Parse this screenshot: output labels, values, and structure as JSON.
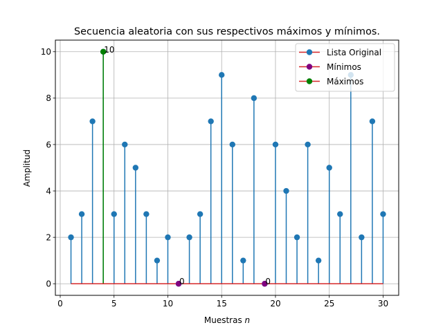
{
  "chart_data": {
    "type": "stem",
    "title": "Secuencia aleatoria con sus respectivos máximos y mínimos.",
    "xlabel": "Muestras",
    "xlabel_var": "n",
    "ylabel": "Amplitud",
    "xlim": [
      -0.45,
      31.45
    ],
    "ylim": [
      -0.5,
      10.5
    ],
    "xticks": [
      0,
      5,
      10,
      15,
      20,
      25,
      30
    ],
    "yticks": [
      0,
      2,
      4,
      6,
      8,
      10
    ],
    "grid": true,
    "legend_position": "top-right",
    "series": [
      {
        "name": "Lista Original",
        "color": "#1f77b4",
        "x": [
          1,
          2,
          3,
          4,
          5,
          6,
          7,
          8,
          9,
          10,
          11,
          12,
          13,
          14,
          15,
          16,
          17,
          18,
          19,
          20,
          21,
          22,
          23,
          24,
          25,
          26,
          27,
          28,
          29,
          30
        ],
        "values": [
          2,
          3,
          7,
          10,
          3,
          6,
          5,
          3,
          1,
          2,
          0,
          2,
          3,
          7,
          9,
          6,
          1,
          8,
          0,
          6,
          4,
          2,
          6,
          1,
          5,
          3,
          9,
          2,
          7,
          3
        ]
      },
      {
        "name": "Mínimos",
        "color": "#800080",
        "x": [
          11,
          19
        ],
        "values": [
          0,
          0
        ],
        "labels": [
          "0",
          "0"
        ]
      },
      {
        "name": "Máximos",
        "color": "#008000",
        "x": [
          4
        ],
        "values": [
          10
        ],
        "labels": [
          "10"
        ]
      }
    ],
    "baseline_color": "#d62728"
  }
}
